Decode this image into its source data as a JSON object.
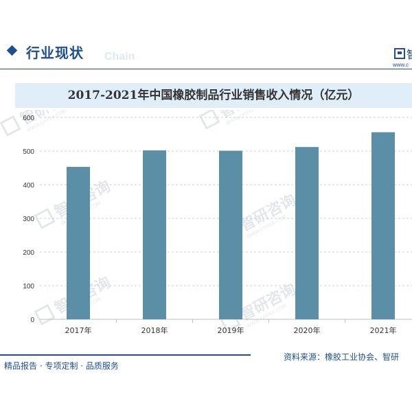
{
  "header": {
    "section_title": "行业现状",
    "watermark_text": "Chain",
    "brand_text": "智",
    "brand_url": "www.c"
  },
  "chart_data": {
    "type": "bar",
    "title": "2017-2021年中国橡胶制品行业销售收入情况（亿元）",
    "categories": [
      "2017年",
      "2018年",
      "2019年",
      "2020年",
      "2021年"
    ],
    "values": [
      453,
      502,
      501,
      512,
      556
    ],
    "ylim": [
      0,
      600
    ],
    "yticks": [
      0,
      100,
      200,
      300,
      400,
      500,
      600
    ],
    "xlabel": "",
    "ylabel": "",
    "grid": true,
    "bar_color": "#5b8fa8"
  },
  "watermark": {
    "name": "智研咨询",
    "sub": "WWW.CHYXX.COM"
  },
  "footer": {
    "left_text": "精品报告 · 专项定制 · 品质服务",
    "source_text": "资料来源：橡胶工业协会、智研"
  },
  "colors": {
    "brand": "#1f4f8f",
    "title_band": "#dfeef8",
    "bar": "#5b8fa8"
  }
}
